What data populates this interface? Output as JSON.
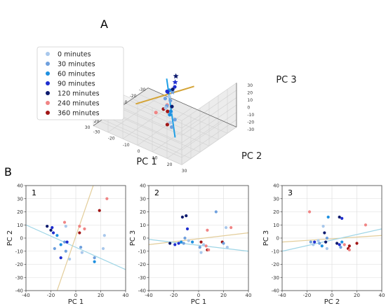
{
  "panel_a": {
    "label": "A"
  },
  "panel_b": {
    "label": "B"
  },
  "legend": {
    "entries": [
      {
        "label": "0 minutes",
        "color": "#a9c8ec"
      },
      {
        "label": "30 minutes",
        "color": "#6fa0de"
      },
      {
        "label": "60 minutes",
        "color": "#1e90e0"
      },
      {
        "label": "90 minutes",
        "color": "#1f2ed0"
      },
      {
        "label": "120 minutes",
        "color": "#0c1a6e"
      },
      {
        "label": "240 minutes",
        "color": "#f08585"
      },
      {
        "label": "360 minutes",
        "color": "#a11616"
      }
    ]
  },
  "chart_data": [
    {
      "type": "scatter",
      "panel": "A",
      "projection": "3d",
      "xlabel": "PC 1",
      "ylabel": "PC 2",
      "zlabel": "PC 3",
      "x_ticks": [
        "-30",
        "-20",
        "-10",
        "0",
        "10",
        "20",
        "30"
      ],
      "y_ticks": [
        "30",
        "20",
        "10",
        "0",
        "-10",
        "-20",
        "-30"
      ],
      "z_ticks": [
        "30",
        "20",
        "10",
        "0",
        "-10",
        "-20",
        "-30"
      ],
      "grid": true,
      "legend_position": "left",
      "lines": [
        {
          "color": "#d4a437",
          "from": [
            -32,
            0,
            -3
          ],
          "to": [
            32,
            0,
            28
          ]
        },
        {
          "color": "#1e9fe6",
          "from": [
            -10,
            -5,
            22
          ],
          "to": [
            5,
            10,
            -32
          ]
        }
      ],
      "points": [
        {
          "x": -12,
          "y": 0,
          "z": 28,
          "series": 4,
          "marker": "star"
        },
        {
          "x": -8,
          "y": 2,
          "z": 25,
          "series": 3,
          "marker": "star"
        },
        {
          "x": -5,
          "y": 2,
          "z": 14,
          "series": 1,
          "marker": "star"
        },
        {
          "x": -14,
          "y": -2,
          "z": 10,
          "series": 3
        },
        {
          "x": -10,
          "y": -3,
          "z": 8,
          "series": 2
        },
        {
          "x": -15,
          "y": -4,
          "z": 4,
          "series": 4
        },
        {
          "x": -12,
          "y": -6,
          "z": 2,
          "series": 3
        },
        {
          "x": -8,
          "y": -2,
          "z": 2,
          "series": 0
        },
        {
          "x": -6,
          "y": 0,
          "z": 0,
          "series": 1
        },
        {
          "x": -16,
          "y": -8,
          "z": -4,
          "series": 3
        },
        {
          "x": -10,
          "y": -6,
          "z": -6,
          "series": 1
        },
        {
          "x": 2,
          "y": 6,
          "z": 4,
          "series": 4
        },
        {
          "x": 4,
          "y": 4,
          "z": 6,
          "series": 5
        },
        {
          "x": 8,
          "y": 4,
          "z": 4,
          "series": 6
        },
        {
          "x": 10,
          "y": 8,
          "z": 6,
          "series": 6
        },
        {
          "x": 6,
          "y": 8,
          "z": 2,
          "series": 0
        },
        {
          "x": -2,
          "y": 0,
          "z": -4,
          "series": 1
        },
        {
          "x": 0,
          "y": 4,
          "z": -6,
          "series": 2
        },
        {
          "x": 2,
          "y": 8,
          "z": -12,
          "series": 1
        },
        {
          "x": 4,
          "y": 6,
          "z": -16,
          "series": 0
        },
        {
          "x": 12,
          "y": 12,
          "z": -10,
          "series": 1
        },
        {
          "x": 20,
          "y": 14,
          "z": 2,
          "series": 6
        },
        {
          "x": 26,
          "y": 10,
          "z": 20,
          "series": 5
        },
        {
          "x": -4,
          "y": -2,
          "z": -10,
          "series": 0
        },
        {
          "x": -2,
          "y": 2,
          "z": -14,
          "series": 2
        }
      ]
    },
    {
      "type": "scatter",
      "panel": "1",
      "xlabel": "PC 1",
      "ylabel": "PC 2",
      "xlim": [
        -40,
        40
      ],
      "ylim": [
        -40,
        40
      ],
      "x_ticks": [
        "-40",
        "-20",
        "0",
        "20",
        "40"
      ],
      "y_ticks": [
        "40",
        "30",
        "20",
        "10",
        "0",
        "-10",
        "-20",
        "-30",
        "-40"
      ],
      "grid": true,
      "lines": [
        {
          "color": "#9ed5e6",
          "from": [
            -40,
            10
          ],
          "to": [
            40,
            -24
          ]
        },
        {
          "color": "#e3cd9a",
          "from": [
            -15,
            -40
          ],
          "to": [
            14,
            40
          ]
        }
      ],
      "points": [
        {
          "x": -23,
          "y": 9,
          "series": 4
        },
        {
          "x": -19,
          "y": 8,
          "series": 3
        },
        {
          "x": -20,
          "y": 6,
          "series": 4
        },
        {
          "x": -18,
          "y": 4,
          "series": 3
        },
        {
          "x": -15,
          "y": 2,
          "series": 2
        },
        {
          "x": -17,
          "y": -8,
          "series": 1
        },
        {
          "x": -12,
          "y": -5,
          "series": 2
        },
        {
          "x": -9,
          "y": -3,
          "series": 1
        },
        {
          "x": -8,
          "y": -10,
          "series": 1
        },
        {
          "x": -7,
          "y": -3,
          "series": 3
        },
        {
          "x": -12,
          "y": -15,
          "series": 3
        },
        {
          "x": -5,
          "y": -16,
          "series": 0
        },
        {
          "x": -9,
          "y": 12,
          "series": 5
        },
        {
          "x": -8,
          "y": 9,
          "series": 0
        },
        {
          "x": 3,
          "y": 9,
          "series": 5
        },
        {
          "x": 3,
          "y": 4,
          "series": 6
        },
        {
          "x": 4,
          "y": -7,
          "series": 1
        },
        {
          "x": 5,
          "y": -11,
          "series": 0
        },
        {
          "x": 7,
          "y": 7,
          "series": 5
        },
        {
          "x": 19,
          "y": 21,
          "series": 6
        },
        {
          "x": 25,
          "y": 30,
          "series": 5
        },
        {
          "x": 23,
          "y": 2,
          "series": 0
        },
        {
          "x": 22,
          "y": -8,
          "series": 0
        },
        {
          "x": 15,
          "y": -15,
          "series": 1
        },
        {
          "x": 15,
          "y": -18,
          "series": 2
        }
      ]
    },
    {
      "type": "scatter",
      "panel": "2",
      "xlabel": "PC 1",
      "ylabel": "PC 3",
      "xlim": [
        -40,
        40
      ],
      "ylim": [
        -40,
        40
      ],
      "x_ticks": [
        "-40",
        "-20",
        "0",
        "20",
        "40"
      ],
      "y_ticks": [
        "40",
        "30",
        "20",
        "10",
        "0",
        "-10",
        "-20",
        "-30",
        "-40"
      ],
      "grid": true,
      "lines": [
        {
          "color": "#e3cd9a",
          "from": [
            -40,
            -5
          ],
          "to": [
            40,
            4
          ]
        },
        {
          "color": "#9ed5e6",
          "from": [
            -40,
            -1
          ],
          "to": [
            40,
            -10
          ]
        }
      ],
      "points": [
        {
          "x": -13,
          "y": 16,
          "series": 4
        },
        {
          "x": -10,
          "y": 17,
          "series": 4
        },
        {
          "x": -9,
          "y": 7,
          "series": 3
        },
        {
          "x": -23,
          "y": -4,
          "series": 4
        },
        {
          "x": -19,
          "y": -5,
          "series": 3
        },
        {
          "x": -16,
          "y": -4,
          "series": 3
        },
        {
          "x": -14,
          "y": -3,
          "series": 2
        },
        {
          "x": -12,
          "y": -4,
          "series": 1
        },
        {
          "x": -11,
          "y": 0,
          "series": 1
        },
        {
          "x": -8,
          "y": -2,
          "series": 0
        },
        {
          "x": -5,
          "y": -3,
          "series": 2
        },
        {
          "x": 2,
          "y": -3,
          "series": 6
        },
        {
          "x": 1,
          "y": -7,
          "series": 1
        },
        {
          "x": 2,
          "y": -11,
          "series": 0
        },
        {
          "x": 4,
          "y": -5,
          "series": 0
        },
        {
          "x": 6,
          "y": -6,
          "series": 5
        },
        {
          "x": 7,
          "y": 6,
          "series": 5
        },
        {
          "x": 7,
          "y": -9,
          "series": 6
        },
        {
          "x": 8,
          "y": -9,
          "series": 5
        },
        {
          "x": 14,
          "y": 20,
          "series": 1
        },
        {
          "x": 19,
          "y": -3,
          "series": 6
        },
        {
          "x": 20,
          "y": -4,
          "series": 1
        },
        {
          "x": 22,
          "y": 8,
          "series": 0
        },
        {
          "x": 26,
          "y": 8,
          "series": 5
        },
        {
          "x": 23,
          "y": -7,
          "series": 0
        }
      ]
    },
    {
      "type": "scatter",
      "panel": "3",
      "xlabel": "PC 2",
      "ylabel": "PC 3",
      "xlim": [
        -40,
        40
      ],
      "ylim": [
        -40,
        40
      ],
      "x_ticks": [
        "-40",
        "-20",
        "0",
        "20",
        "40"
      ],
      "y_ticks": [
        "40",
        "30",
        "20",
        "10",
        "0",
        "-10",
        "-20",
        "-30",
        "-40"
      ],
      "grid": true,
      "lines": [
        {
          "color": "#e3cd9a",
          "from": [
            -40,
            -3
          ],
          "to": [
            40,
            2
          ]
        },
        {
          "color": "#9ed5e6",
          "from": [
            -40,
            -10
          ],
          "to": [
            40,
            7
          ]
        }
      ],
      "points": [
        {
          "x": -18,
          "y": 20,
          "series": 5
        },
        {
          "x": -7,
          "y": 9,
          "series": 0
        },
        {
          "x": -3,
          "y": 16,
          "series": 2
        },
        {
          "x": -17,
          "y": -3,
          "series": 1
        },
        {
          "x": -15,
          "y": -5,
          "series": 0
        },
        {
          "x": -14,
          "y": -3,
          "series": 3
        },
        {
          "x": -10,
          "y": -4,
          "series": 1
        },
        {
          "x": -11,
          "y": -2,
          "series": 0
        },
        {
          "x": -8,
          "y": -6,
          "series": 2
        },
        {
          "x": -5,
          "y": -3,
          "series": 4
        },
        {
          "x": -4,
          "y": 0,
          "series": 1
        },
        {
          "x": -6,
          "y": 4,
          "series": 4
        },
        {
          "x": -4,
          "y": -8,
          "series": 0
        },
        {
          "x": 4,
          "y": -4,
          "series": 4
        },
        {
          "x": 6,
          "y": -5,
          "series": 3
        },
        {
          "x": 8,
          "y": -3,
          "series": 2
        },
        {
          "x": 7,
          "y": -7,
          "series": 1
        },
        {
          "x": 6,
          "y": 16,
          "series": 4
        },
        {
          "x": 8,
          "y": 15,
          "series": 3
        },
        {
          "x": 10,
          "y": -5,
          "series": 5
        },
        {
          "x": 14,
          "y": -6,
          "series": 6
        },
        {
          "x": 13,
          "y": -8,
          "series": 6
        },
        {
          "x": 14,
          "y": -9,
          "series": 5
        },
        {
          "x": 20,
          "y": -4,
          "series": 6
        },
        {
          "x": 27,
          "y": 10,
          "series": 5
        }
      ]
    }
  ]
}
